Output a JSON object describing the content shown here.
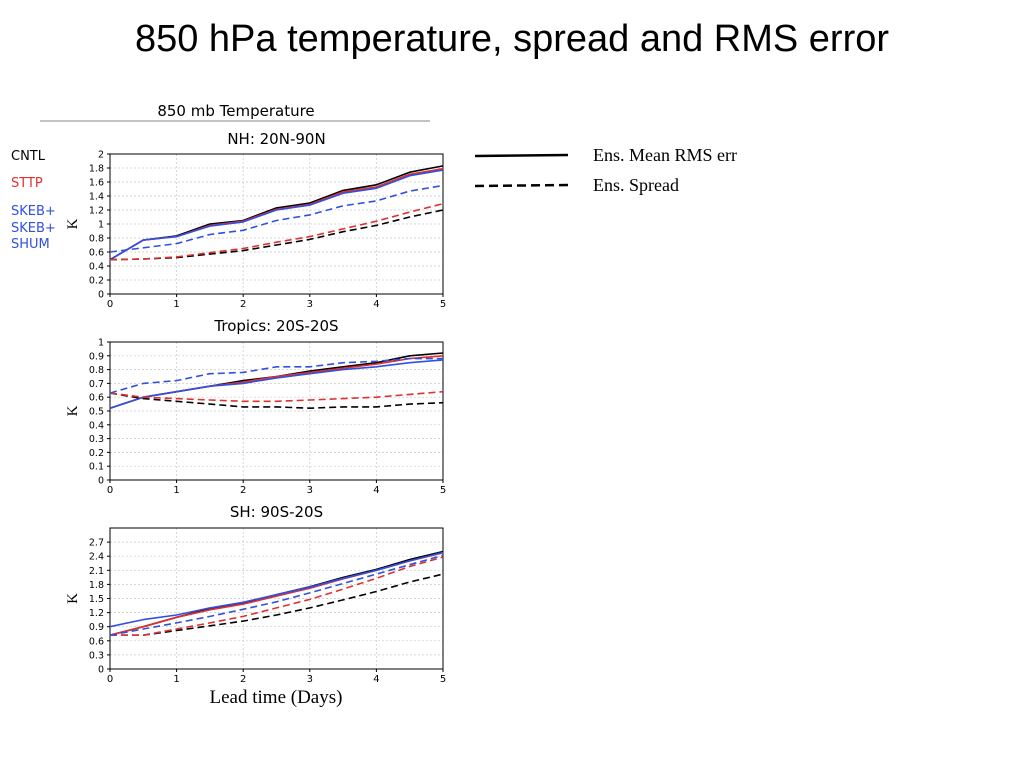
{
  "slide_title": "850 hPa temperature, spread and RMS error",
  "figure_title": "850 mb Temperature",
  "xlabel": "Lead time (Days)",
  "colors": {
    "CNTL": "#000000",
    "STTP": "#e03030",
    "SKEB+ SKEB+ SHUM": "#3050e0"
  },
  "legend_left": [
    {
      "label": "CNTL",
      "color": "#000000"
    },
    {
      "label": "STTP",
      "color": "#e03030"
    },
    {
      "label": "SKEB+",
      "color": "#3050e0"
    },
    {
      "label": "SKEB+",
      "color": "#3050e0"
    },
    {
      "label": "SHUM",
      "color": "#3050e0"
    }
  ],
  "legend_right": [
    {
      "label": "Ens. Mean RMS err",
      "style": "solid"
    },
    {
      "label": "Ens. Spread",
      "style": "dashed"
    }
  ],
  "chart_data": [
    {
      "type": "line",
      "title": "NH: 20N-90N",
      "ylabel": "K",
      "xlim": [
        0,
        5
      ],
      "ylim": [
        0,
        2
      ],
      "yticks": [
        0,
        0.2,
        0.4,
        0.6,
        0.8,
        1,
        1.2,
        1.4,
        1.6,
        1.8,
        2
      ],
      "xticks": [
        0,
        1,
        2,
        3,
        4,
        5
      ],
      "grid": true,
      "x": [
        0,
        0.5,
        1,
        1.5,
        2,
        2.5,
        3,
        3.5,
        4,
        4.5,
        5
      ],
      "series": [
        {
          "model": "CNTL",
          "kind": "rms",
          "values": [
            0.49,
            0.77,
            0.83,
            1.0,
            1.05,
            1.23,
            1.3,
            1.48,
            1.56,
            1.74,
            1.83
          ]
        },
        {
          "model": "STTP",
          "kind": "rms",
          "values": [
            0.49,
            0.77,
            0.82,
            0.98,
            1.04,
            1.21,
            1.28,
            1.46,
            1.53,
            1.71,
            1.79
          ]
        },
        {
          "model": "SKEB+ SKEB+ SHUM",
          "kind": "rms",
          "values": [
            0.49,
            0.77,
            0.82,
            0.97,
            1.03,
            1.2,
            1.27,
            1.44,
            1.51,
            1.69,
            1.77
          ]
        },
        {
          "model": "CNTL",
          "kind": "spread",
          "values": [
            0.49,
            0.5,
            0.52,
            0.57,
            0.62,
            0.7,
            0.78,
            0.89,
            0.98,
            1.1,
            1.2
          ]
        },
        {
          "model": "STTP",
          "kind": "spread",
          "values": [
            0.49,
            0.5,
            0.53,
            0.59,
            0.65,
            0.74,
            0.82,
            0.93,
            1.04,
            1.17,
            1.29
          ]
        },
        {
          "model": "SKEB+ SKEB+ SHUM",
          "kind": "spread",
          "values": [
            0.6,
            0.66,
            0.72,
            0.85,
            0.91,
            1.05,
            1.13,
            1.26,
            1.33,
            1.47,
            1.55
          ]
        }
      ]
    },
    {
      "type": "line",
      "title": "Tropics: 20S-20S",
      "ylabel": "K",
      "xlim": [
        0,
        5
      ],
      "ylim": [
        0,
        1
      ],
      "yticks": [
        0,
        0.1,
        0.2,
        0.3,
        0.4,
        0.5,
        0.6,
        0.7,
        0.8,
        0.9,
        1
      ],
      "xticks": [
        0,
        1,
        2,
        3,
        4,
        5
      ],
      "grid": true,
      "x": [
        0,
        0.5,
        1,
        1.5,
        2,
        2.5,
        3,
        3.5,
        4,
        4.5,
        5
      ],
      "series": [
        {
          "model": "CNTL",
          "kind": "rms",
          "values": [
            0.52,
            0.6,
            0.64,
            0.68,
            0.72,
            0.75,
            0.79,
            0.82,
            0.85,
            0.9,
            0.92
          ]
        },
        {
          "model": "STTP",
          "kind": "rms",
          "values": [
            0.52,
            0.6,
            0.64,
            0.68,
            0.71,
            0.75,
            0.78,
            0.81,
            0.84,
            0.88,
            0.9
          ]
        },
        {
          "model": "SKEB+ SKEB+ SHUM",
          "kind": "rms",
          "values": [
            0.52,
            0.6,
            0.64,
            0.68,
            0.7,
            0.74,
            0.77,
            0.8,
            0.82,
            0.85,
            0.87
          ]
        },
        {
          "model": "CNTL",
          "kind": "spread",
          "values": [
            0.63,
            0.59,
            0.57,
            0.55,
            0.53,
            0.53,
            0.52,
            0.53,
            0.53,
            0.55,
            0.56
          ]
        },
        {
          "model": "STTP",
          "kind": "spread",
          "values": [
            0.63,
            0.6,
            0.59,
            0.58,
            0.57,
            0.57,
            0.58,
            0.59,
            0.6,
            0.62,
            0.64
          ]
        },
        {
          "model": "SKEB+ SKEB+ SHUM",
          "kind": "spread",
          "values": [
            0.63,
            0.7,
            0.72,
            0.77,
            0.78,
            0.82,
            0.82,
            0.85,
            0.86,
            0.88,
            0.88
          ]
        }
      ]
    },
    {
      "type": "line",
      "title": "SH: 90S-20S",
      "ylabel": "K",
      "xlim": [
        0,
        5
      ],
      "ylim": [
        0,
        3
      ],
      "yticks": [
        0,
        0.3,
        0.6,
        0.9,
        1.2,
        1.5,
        1.8,
        2.1,
        2.4,
        2.7
      ],
      "xticks": [
        0,
        1,
        2,
        3,
        4,
        5
      ],
      "grid": true,
      "x": [
        0,
        0.5,
        1,
        1.5,
        2,
        2.5,
        3,
        3.5,
        4,
        4.5,
        5
      ],
      "series": [
        {
          "model": "CNTL",
          "kind": "rms",
          "values": [
            0.72,
            0.9,
            1.1,
            1.28,
            1.4,
            1.58,
            1.75,
            1.95,
            2.12,
            2.33,
            2.5
          ]
        },
        {
          "model": "STTP",
          "kind": "rms",
          "values": [
            0.72,
            0.9,
            1.1,
            1.26,
            1.38,
            1.55,
            1.72,
            1.92,
            2.1,
            2.3,
            2.47
          ]
        },
        {
          "model": "SKEB+ SKEB+ SHUM",
          "kind": "rms",
          "values": [
            0.9,
            1.05,
            1.15,
            1.3,
            1.42,
            1.58,
            1.74,
            1.93,
            2.1,
            2.3,
            2.48
          ]
        },
        {
          "model": "CNTL",
          "kind": "spread",
          "values": [
            0.72,
            0.72,
            0.82,
            0.92,
            1.02,
            1.15,
            1.3,
            1.47,
            1.65,
            1.85,
            2.02
          ]
        },
        {
          "model": "STTP",
          "kind": "spread",
          "values": [
            0.72,
            0.72,
            0.85,
            0.98,
            1.12,
            1.3,
            1.48,
            1.7,
            1.93,
            2.18,
            2.38
          ]
        },
        {
          "model": "SKEB+ SKEB+ SHUM",
          "kind": "spread",
          "values": [
            0.72,
            0.85,
            0.98,
            1.12,
            1.27,
            1.43,
            1.62,
            1.82,
            2.02,
            2.22,
            2.42
          ]
        }
      ]
    }
  ]
}
